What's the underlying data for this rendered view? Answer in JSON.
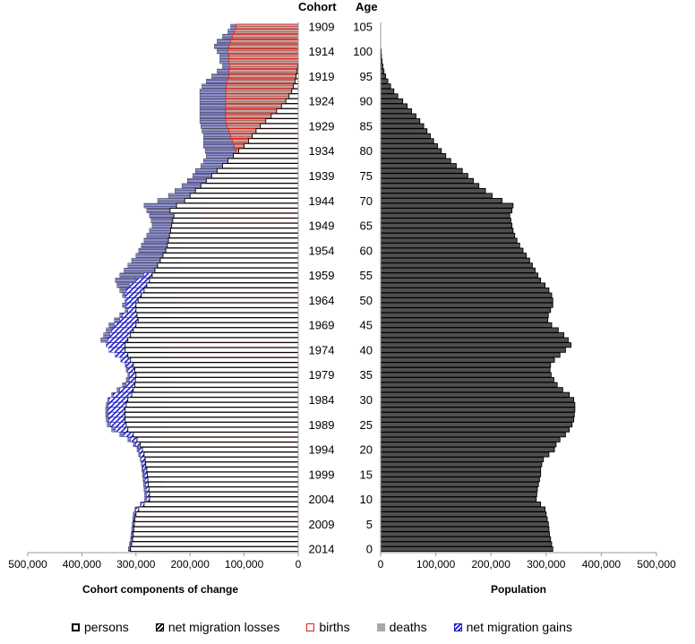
{
  "headers": {
    "cohort": "Cohort",
    "age": "Age"
  },
  "legend": {
    "persons": "persons",
    "losses": "net migration losses",
    "births": "births",
    "deaths": "deaths",
    "gains": "net migration gains"
  },
  "colors": {
    "deaths_fill": "#c7a19c",
    "deaths_stripe": "#b06a63",
    "births_outline": "#e0201b",
    "gains": "#1a1ad0",
    "gains_band": "#8f90c8",
    "population_fill": "#4f4f4f"
  },
  "chart_data": [
    {
      "type": "bar",
      "title": "Cohort components of change",
      "orientation": "horizontal-pyramid-left",
      "cohort_labels": [
        "1909",
        "1914",
        "1919",
        "1924",
        "1929",
        "1934",
        "1939",
        "1944",
        "1949",
        "1954",
        "1959",
        "1964",
        "1969",
        "1974",
        "1979",
        "1984",
        "1989",
        "1994",
        "1999",
        "2004",
        "2009",
        "2014"
      ],
      "cohorts": [
        1909,
        1910,
        1911,
        1912,
        1913,
        1914,
        1915,
        1916,
        1917,
        1918,
        1919,
        1920,
        1921,
        1922,
        1923,
        1924,
        1925,
        1926,
        1927,
        1928,
        1929,
        1930,
        1931,
        1932,
        1933,
        1934,
        1935,
        1936,
        1937,
        1938,
        1939,
        1940,
        1941,
        1942,
        1943,
        1944,
        1945,
        1946,
        1947,
        1948,
        1949,
        1950,
        1951,
        1952,
        1953,
        1954,
        1955,
        1956,
        1957,
        1958,
        1959,
        1960,
        1961,
        1962,
        1963,
        1964,
        1965,
        1966,
        1967,
        1968,
        1969,
        1970,
        1971,
        1972,
        1973,
        1974,
        1975,
        1976,
        1977,
        1978,
        1979,
        1980,
        1981,
        1982,
        1983,
        1984,
        1985,
        1986,
        1987,
        1988,
        1989,
        1990,
        1991,
        1992,
        1993,
        1994,
        1995,
        1996,
        1997,
        1998,
        1999,
        2000,
        2001,
        2002,
        2003,
        2004,
        2005,
        2006,
        2007,
        2008,
        2009,
        2010,
        2011,
        2012,
        2013,
        2014
      ],
      "series": [
        {
          "name": "persons",
          "values": [
            0,
            0,
            0,
            0,
            0,
            0,
            0,
            0,
            1000,
            2000,
            4000,
            6000,
            9000,
            12000,
            17000,
            23000,
            31000,
            40000,
            50000,
            60000,
            70000,
            78000,
            85000,
            92000,
            100000,
            110000,
            120000,
            130000,
            140000,
            150000,
            160000,
            170000,
            180000,
            190000,
            200000,
            210000,
            225000,
            237000,
            230000,
            232000,
            234000,
            236000,
            238000,
            240000,
            242000,
            245000,
            250000,
            255000,
            260000,
            265000,
            270000,
            275000,
            280000,
            285000,
            290000,
            296000,
            300000,
            300000,
            298000,
            296000,
            300000,
            305000,
            310000,
            315000,
            320000,
            320000,
            315000,
            310000,
            305000,
            302000,
            300000,
            301000,
            302000,
            305000,
            308000,
            315000,
            318000,
            320000,
            320000,
            320000,
            318000,
            315000,
            305000,
            298000,
            292000,
            288000,
            285000,
            283000,
            282000,
            280000,
            279000,
            278000,
            277000,
            276000,
            275000,
            275000,
            285000,
            295000,
            300000,
            302000,
            303000,
            304000,
            305000,
            306000,
            308000,
            310000
          ]
        },
        {
          "name": "births",
          "values": [
            115000,
            118000,
            122000,
            125000,
            128000,
            130000,
            128000,
            128000,
            127000,
            128000,
            128000,
            132000,
            133000,
            134000,
            134000,
            134000,
            134000,
            134000,
            134000,
            134000,
            132000,
            128000,
            125000,
            122000,
            118000,
            115000,
            115000,
            118000,
            120000,
            125000,
            130000,
            135000,
            140000,
            145000,
            150000,
            160000,
            170000,
            175000,
            180000,
            185000,
            190000,
            195000,
            200000,
            205000,
            208000,
            210000,
            212000,
            215000,
            218000,
            220000,
            225000,
            230000,
            232000,
            228000,
            225000,
            225000,
            222000,
            220000,
            230000,
            240000,
            245000,
            250000,
            255000,
            255000,
            255000,
            250000,
            245000,
            240000,
            235000,
            230000,
            228000,
            230000,
            232000,
            235000,
            240000,
            242000,
            245000,
            246000,
            247000,
            248000,
            248000,
            250000,
            255000,
            258000,
            260000,
            262000,
            262000,
            260000,
            258000,
            256000,
            255000,
            252000,
            250000,
            248000,
            248000,
            250000,
            265000,
            290000,
            300000,
            302000,
            303000,
            304000,
            305000,
            306000,
            308000,
            310000
          ]
        },
        {
          "name": "net_migration_gains",
          "values": [
            0,
            0,
            0,
            0,
            0,
            0,
            0,
            0,
            0,
            0,
            0,
            0,
            0,
            0,
            0,
            0,
            0,
            0,
            0,
            0,
            0,
            0,
            0,
            0,
            0,
            0,
            0,
            0,
            0,
            0,
            0,
            0,
            0,
            0,
            0,
            0,
            0,
            0,
            0,
            0,
            0,
            0,
            0,
            0,
            0,
            0,
            0,
            0,
            0,
            0,
            285000,
            300000,
            312000,
            318000,
            320000,
            320000,
            318000,
            315000,
            325000,
            330000,
            340000,
            345000,
            348000,
            352000,
            355000,
            350000,
            338000,
            328000,
            318000,
            315000,
            312000,
            312000,
            318000,
            330000,
            342000,
            350000,
            352000,
            352000,
            352000,
            350000,
            347000,
            338000,
            322000,
            310000,
            300000,
            295000,
            292000,
            290000,
            288000,
            287000,
            285000,
            283000,
            282000,
            281000,
            280000,
            280000,
            290000,
            300000,
            303000,
            304000,
            305000,
            306000,
            307000,
            308000,
            310000,
            312000
          ]
        },
        {
          "name": "total_outline",
          "values": [
            125000,
            130000,
            140000,
            150000,
            155000,
            150000,
            145000,
            145000,
            140000,
            150000,
            160000,
            170000,
            178000,
            182000,
            182000,
            182000,
            182000,
            182000,
            182000,
            182000,
            180000,
            178000,
            175000,
            175000,
            175000,
            172000,
            170000,
            175000,
            180000,
            190000,
            195000,
            205000,
            215000,
            228000,
            240000,
            260000,
            285000,
            280000,
            275000,
            272000,
            270000,
            275000,
            280000,
            285000,
            290000,
            295000,
            300000,
            308000,
            315000,
            322000,
            330000,
            338000,
            335000,
            330000,
            325000,
            320000,
            325000,
            320000,
            330000,
            340000,
            350000,
            355000,
            360000,
            365000,
            352000,
            345000,
            335000,
            325000,
            320000,
            318000,
            315000,
            318000,
            325000,
            335000,
            345000,
            352000,
            355000,
            356000,
            356000,
            355000,
            353000,
            345000,
            330000,
            315000,
            305000,
            298000,
            295000,
            292000,
            290000,
            289000,
            288000,
            287000,
            286000,
            285000,
            284000,
            284000,
            292000,
            302000,
            305000,
            306000,
            307000,
            308000,
            309000,
            310000,
            312000,
            314000
          ]
        }
      ],
      "xlim": [
        0,
        500000
      ],
      "tick_labels": [
        "500,000",
        "400,000",
        "300,000",
        "200,000",
        "100,000",
        "0"
      ]
    },
    {
      "type": "bar",
      "title": "Population",
      "orientation": "horizontal-right",
      "age_labels": [
        "105",
        "100",
        "95",
        "90",
        "85",
        "80",
        "75",
        "70",
        "65",
        "60",
        "55",
        "50",
        "45",
        "40",
        "35",
        "30",
        "25",
        "20",
        "15",
        "10",
        "5",
        "0"
      ],
      "ages": [
        105,
        104,
        103,
        102,
        101,
        100,
        99,
        98,
        97,
        96,
        95,
        94,
        93,
        92,
        91,
        90,
        89,
        88,
        87,
        86,
        85,
        84,
        83,
        82,
        81,
        80,
        79,
        78,
        77,
        76,
        75,
        74,
        73,
        72,
        71,
        70,
        69,
        68,
        67,
        66,
        65,
        64,
        63,
        62,
        61,
        60,
        59,
        58,
        57,
        56,
        55,
        54,
        53,
        52,
        51,
        50,
        49,
        48,
        47,
        46,
        45,
        44,
        43,
        42,
        41,
        40,
        39,
        38,
        37,
        36,
        35,
        34,
        33,
        32,
        31,
        30,
        29,
        28,
        27,
        26,
        25,
        24,
        23,
        22,
        21,
        20,
        19,
        18,
        17,
        16,
        15,
        14,
        13,
        12,
        11,
        10,
        9,
        8,
        7,
        6,
        5,
        4,
        3,
        2,
        1,
        0
      ],
      "values": [
        0,
        0,
        0,
        0,
        0,
        1000,
        1500,
        2500,
        4000,
        6000,
        9000,
        13000,
        18000,
        24000,
        31000,
        40000,
        48000,
        56000,
        64000,
        71000,
        78000,
        84000,
        90000,
        96000,
        103000,
        110000,
        118000,
        127000,
        137000,
        148000,
        158000,
        168000,
        178000,
        190000,
        202000,
        220000,
        240000,
        238000,
        234000,
        236000,
        238000,
        240000,
        243000,
        247000,
        252000,
        258000,
        264000,
        270000,
        275000,
        280000,
        285000,
        290000,
        298000,
        305000,
        310000,
        312000,
        312000,
        308000,
        304000,
        303000,
        310000,
        322000,
        332000,
        340000,
        345000,
        335000,
        325000,
        315000,
        308000,
        307000,
        309000,
        314000,
        320000,
        330000,
        342000,
        350000,
        352000,
        352000,
        351000,
        350000,
        347000,
        342000,
        335000,
        325000,
        318000,
        315000,
        305000,
        295000,
        292000,
        290000,
        290000,
        288000,
        286000,
        284000,
        283000,
        282000,
        290000,
        298000,
        300000,
        302000,
        304000,
        305000,
        306000,
        308000,
        310000,
        312000
      ],
      "xlim": [
        0,
        500000
      ],
      "tick_labels": [
        "0",
        "100,000",
        "200,000",
        "300,000",
        "400,000",
        "500,000"
      ]
    }
  ]
}
